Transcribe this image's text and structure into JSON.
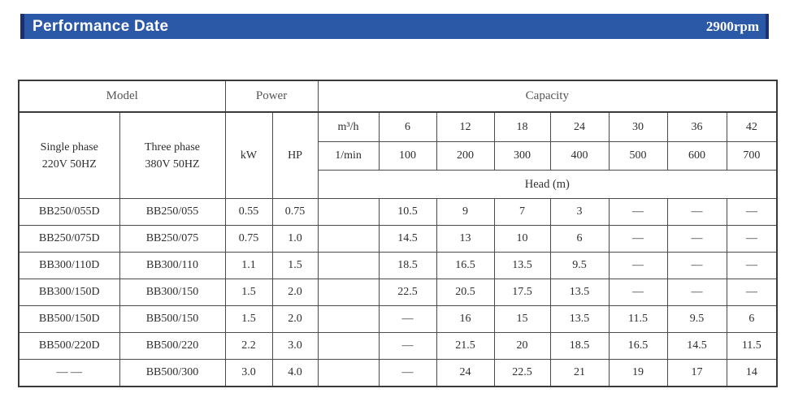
{
  "header": {
    "title": "Performance Date",
    "rpm": "2900rpm",
    "bar_color": "#2b58a7",
    "edge_color": "#1c2f6e"
  },
  "table": {
    "group_headers": {
      "model": "Model",
      "power": "Power",
      "capacity": "Capacity"
    },
    "model_columns": {
      "single_phase": [
        "Single phase",
        "220V 50HZ"
      ],
      "three_phase": [
        "Three phase",
        "380V 50HZ"
      ]
    },
    "power_columns": {
      "kw": "kW",
      "hp": "HP"
    },
    "capacity": {
      "flow_unit_m3h": "m³/h",
      "flow_unit_lmin": "1/min",
      "flow_m3h": [
        "6",
        "12",
        "18",
        "24",
        "30",
        "36",
        "42"
      ],
      "flow_lmin": [
        "100",
        "200",
        "300",
        "400",
        "500",
        "600",
        "700"
      ],
      "head_label": "Head (m)"
    },
    "rows": [
      {
        "single": "BB250/055D",
        "three": "BB250/055",
        "kw": "0.55",
        "hp": "0.75",
        "head": [
          "10.5",
          "9",
          "7",
          "3",
          "—",
          "—",
          "—"
        ]
      },
      {
        "single": "BB250/075D",
        "three": "BB250/075",
        "kw": "0.75",
        "hp": "1.0",
        "head": [
          "14.5",
          "13",
          "10",
          "6",
          "—",
          "—",
          "—"
        ]
      },
      {
        "single": "BB300/110D",
        "three": "BB300/110",
        "kw": "1.1",
        "hp": "1.5",
        "head": [
          "18.5",
          "16.5",
          "13.5",
          "9.5",
          "—",
          "—",
          "—"
        ]
      },
      {
        "single": "BB300/150D",
        "three": "BB300/150",
        "kw": "1.5",
        "hp": "2.0",
        "head": [
          "22.5",
          "20.5",
          "17.5",
          "13.5",
          "—",
          "—",
          "—"
        ]
      },
      {
        "single": "BB500/150D",
        "three": "BB500/150",
        "kw": "1.5",
        "hp": "2.0",
        "head": [
          "—",
          "16",
          "15",
          "13.5",
          "11.5",
          "9.5",
          "6"
        ]
      },
      {
        "single": "BB500/220D",
        "three": "BB500/220",
        "kw": "2.2",
        "hp": "3.0",
        "head": [
          "—",
          "21.5",
          "20",
          "18.5",
          "16.5",
          "14.5",
          "11.5"
        ]
      },
      {
        "single": "— —",
        "three": "BB500/300",
        "kw": "3.0",
        "hp": "4.0",
        "head": [
          "—",
          "24",
          "22.5",
          "21",
          "19",
          "17",
          "14"
        ]
      }
    ]
  }
}
